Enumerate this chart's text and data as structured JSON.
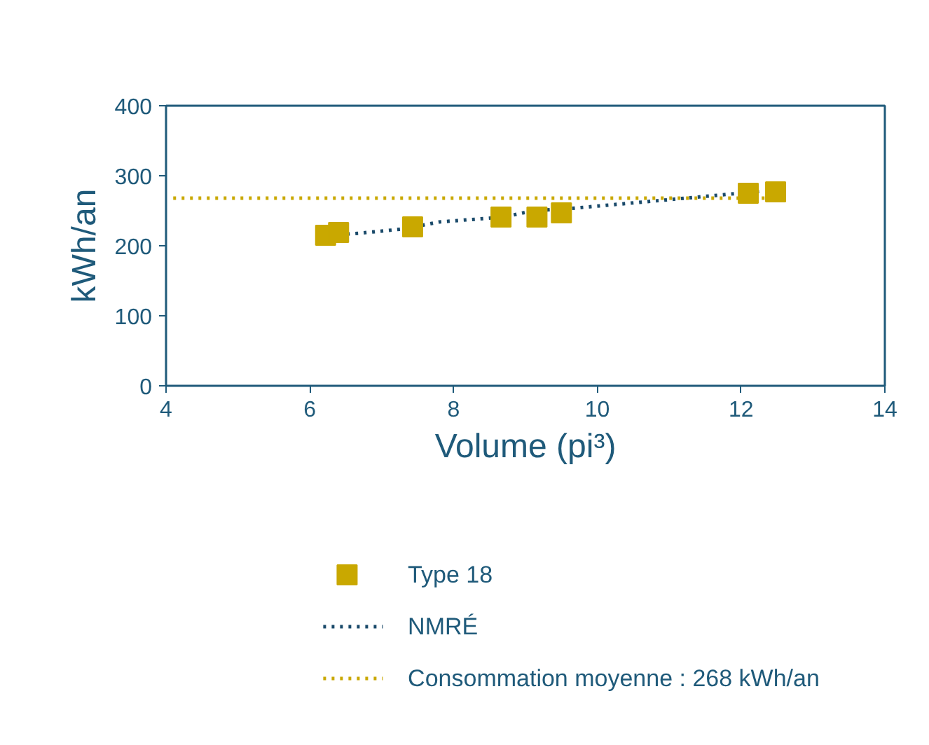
{
  "chart_data": {
    "type": "scatter",
    "xlabel": "Volume (pi³)",
    "ylabel": "kWh/an",
    "xlim": [
      4,
      14
    ],
    "ylim": [
      0,
      400
    ],
    "xticks": [
      4,
      6,
      8,
      10,
      12,
      14
    ],
    "yticks": [
      0,
      100,
      200,
      300,
      400
    ],
    "grid": false,
    "legend": "bottom",
    "series": [
      {
        "name": "Type 18",
        "marker": "square",
        "color": "#c9a800",
        "x": [
          6.22,
          6.4,
          7.43,
          8.66,
          9.16,
          9.5,
          12.1,
          12.48
        ],
        "values": [
          215,
          219,
          227,
          241,
          241,
          247,
          275,
          277
        ]
      },
      {
        "name": "NMRÉ",
        "type": "line",
        "line_style": "dotted",
        "color": "#1a4a6a",
        "x": [
          6.4,
          6.7,
          7.3,
          7.8,
          8.7,
          9.1,
          9.6,
          10.8,
          12.3
        ],
        "values": [
          216,
          218,
          224,
          234,
          241,
          250,
          253,
          264,
          278
        ]
      },
      {
        "name": "Consommation moyenne : 268 kWh/an",
        "type": "line",
        "line_style": "dotted",
        "color": "#c9a800",
        "x": [
          4.1,
          12.5
        ],
        "values": [
          268,
          268
        ]
      }
    ]
  }
}
